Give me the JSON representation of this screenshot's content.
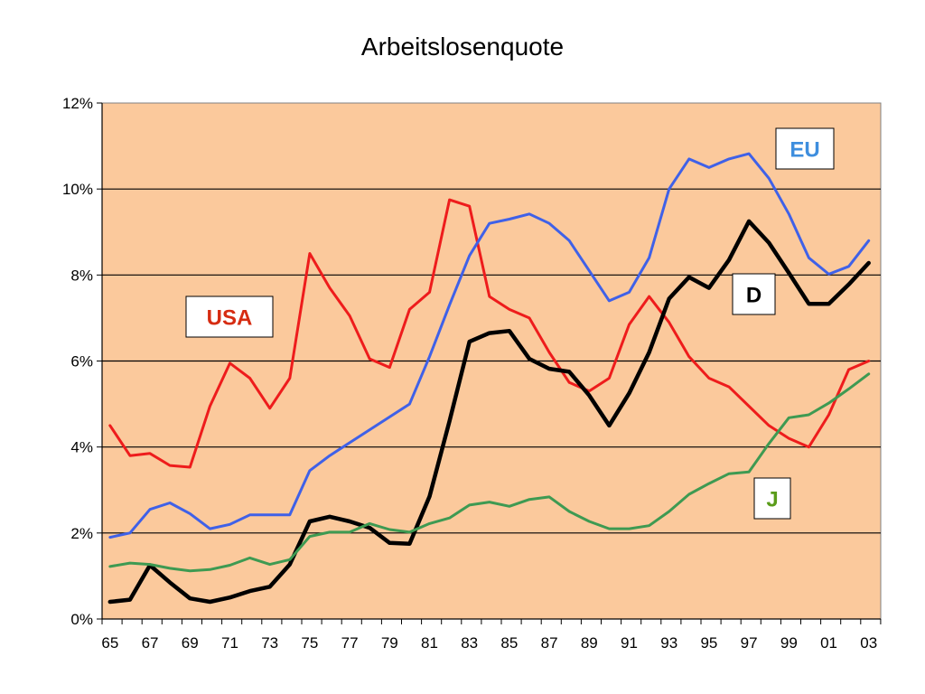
{
  "chart_data": {
    "type": "line",
    "title": "Arbeitslosenquote",
    "xlabel": "",
    "ylabel": "",
    "x": [
      1965,
      1966,
      1967,
      1968,
      1969,
      1970,
      1971,
      1972,
      1973,
      1974,
      1975,
      1976,
      1977,
      1978,
      1979,
      1980,
      1981,
      1982,
      1983,
      1984,
      1985,
      1986,
      1987,
      1988,
      1989,
      1990,
      1991,
      1992,
      1993,
      1994,
      1995,
      1996,
      1997,
      1998,
      1999,
      2000,
      2001,
      2002,
      2003
    ],
    "xlim": [
      1964.6,
      2003.6
    ],
    "ylim": [
      0,
      12
    ],
    "x_tick_labels": [
      "65",
      "67",
      "69",
      "71",
      "73",
      "75",
      "77",
      "79",
      "81",
      "83",
      "85",
      "87",
      "89",
      "91",
      "93",
      "95",
      "97",
      "99",
      "01",
      "03"
    ],
    "y_tick_labels": [
      "0%",
      "2%",
      "4%",
      "6%",
      "8%",
      "10%",
      "12%"
    ],
    "grid": true,
    "plot_background": "#FBC99C",
    "series": [
      {
        "name": "USA",
        "color": "#EE1C1C",
        "width": 3,
        "values": [
          4.5,
          3.8,
          3.85,
          3.57,
          3.53,
          4.95,
          5.95,
          5.6,
          4.9,
          5.6,
          8.5,
          7.7,
          7.05,
          6.05,
          5.85,
          7.2,
          7.6,
          9.75,
          9.6,
          7.5,
          7.2,
          7.0,
          6.2,
          5.5,
          5.3,
          5.6,
          6.85,
          7.5,
          6.9,
          6.1,
          5.6,
          5.4,
          4.95,
          4.5,
          4.2,
          4.0,
          4.75,
          5.8,
          6.0
        ]
      },
      {
        "name": "EU",
        "color": "#3F61E8",
        "width": 3,
        "values": [
          1.9,
          2.0,
          2.55,
          2.7,
          2.45,
          2.1,
          2.2,
          2.42,
          2.42,
          2.42,
          3.45,
          3.8,
          4.1,
          4.4,
          4.7,
          5.0,
          6.1,
          7.3,
          8.45,
          9.2,
          9.3,
          9.42,
          9.2,
          8.8,
          8.1,
          7.4,
          7.6,
          8.4,
          10.0,
          10.7,
          10.5,
          10.7,
          10.82,
          10.25,
          9.42,
          8.4,
          8.02,
          8.2,
          8.8
        ]
      },
      {
        "name": "D",
        "color": "#000000",
        "width": 4.5,
        "values": [
          0.4,
          0.45,
          1.25,
          0.85,
          0.48,
          0.4,
          0.5,
          0.65,
          0.75,
          1.27,
          2.27,
          2.38,
          2.27,
          2.12,
          1.77,
          1.75,
          2.85,
          4.6,
          6.45,
          6.65,
          6.7,
          6.05,
          5.82,
          5.75,
          5.2,
          4.5,
          5.25,
          6.2,
          7.45,
          7.95,
          7.7,
          8.35,
          9.25,
          8.75,
          8.05,
          7.33,
          7.33,
          7.78,
          8.28
        ]
      },
      {
        "name": "J",
        "color": "#3E9A52",
        "width": 3,
        "values": [
          1.22,
          1.3,
          1.27,
          1.18,
          1.12,
          1.15,
          1.25,
          1.42,
          1.27,
          1.38,
          1.92,
          2.02,
          2.02,
          2.22,
          2.08,
          2.02,
          2.22,
          2.35,
          2.65,
          2.72,
          2.62,
          2.78,
          2.84,
          2.5,
          2.27,
          2.1,
          2.1,
          2.17,
          2.5,
          2.9,
          3.15,
          3.38,
          3.42,
          4.08,
          4.68,
          4.75,
          5.02,
          5.35,
          5.7
        ]
      }
    ],
    "annotations": [
      {
        "text": "EU",
        "color": "#3E8EDE"
      },
      {
        "text": "USA",
        "color": "#D62C12"
      },
      {
        "text": "D",
        "color": "#000000"
      },
      {
        "text": "J",
        "color": "#5A9C1A"
      }
    ]
  }
}
